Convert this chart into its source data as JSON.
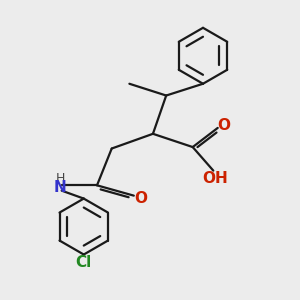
{
  "background_color": "#ececec",
  "bond_color": "#1a1a1a",
  "nitrogen_color": "#3333cc",
  "oxygen_color": "#cc2200",
  "chlorine_color": "#228822",
  "line_width": 1.6,
  "figsize": [
    3.0,
    3.0
  ],
  "dpi": 100,
  "xlim": [
    0,
    10
  ],
  "ylim": [
    0,
    10
  ]
}
